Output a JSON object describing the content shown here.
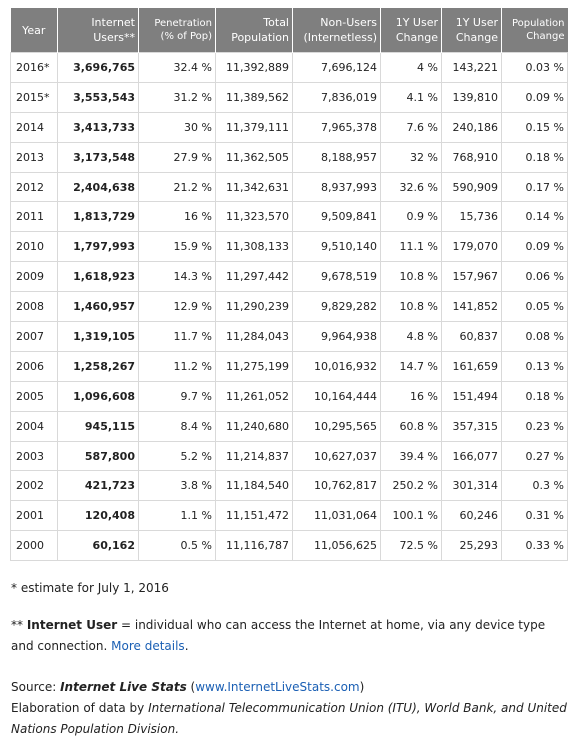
{
  "table": {
    "headers": {
      "year": "Year",
      "users_1": "Internet",
      "users_2": "Users**",
      "pen_1": "Penetration",
      "pen_2": "(% of Pop)",
      "pop_1": "Total",
      "pop_2": "Population",
      "non_1": "Non-Users",
      "non_2": "(Internetless)",
      "chg_1": "1Y User",
      "chg_2": "Change",
      "chgabs_1": "1Y User",
      "chgabs_2": "Change",
      "popchg_1": "Population",
      "popchg_2": "Change"
    },
    "rows": [
      {
        "year": "2016*",
        "users": "3,696,765",
        "penetration": "32.4 %",
        "population": "11,392,889",
        "non_users": "7,696,124",
        "change_pct": "4 %",
        "change_abs": "143,221",
        "pop_change": "0.03 %"
      },
      {
        "year": "2015*",
        "users": "3,553,543",
        "penetration": "31.2 %",
        "population": "11,389,562",
        "non_users": "7,836,019",
        "change_pct": "4.1 %",
        "change_abs": "139,810",
        "pop_change": "0.09 %"
      },
      {
        "year": "2014",
        "users": "3,413,733",
        "penetration": "30 %",
        "population": "11,379,111",
        "non_users": "7,965,378",
        "change_pct": "7.6 %",
        "change_abs": "240,186",
        "pop_change": "0.15 %"
      },
      {
        "year": "2013",
        "users": "3,173,548",
        "penetration": "27.9 %",
        "population": "11,362,505",
        "non_users": "8,188,957",
        "change_pct": "32 %",
        "change_abs": "768,910",
        "pop_change": "0.18 %"
      },
      {
        "year": "2012",
        "users": "2,404,638",
        "penetration": "21.2 %",
        "population": "11,342,631",
        "non_users": "8,937,993",
        "change_pct": "32.6 %",
        "change_abs": "590,909",
        "pop_change": "0.17 %"
      },
      {
        "year": "2011",
        "users": "1,813,729",
        "penetration": "16 %",
        "population": "11,323,570",
        "non_users": "9,509,841",
        "change_pct": "0.9 %",
        "change_abs": "15,736",
        "pop_change": "0.14 %"
      },
      {
        "year": "2010",
        "users": "1,797,993",
        "penetration": "15.9 %",
        "population": "11,308,133",
        "non_users": "9,510,140",
        "change_pct": "11.1 %",
        "change_abs": "179,070",
        "pop_change": "0.09 %"
      },
      {
        "year": "2009",
        "users": "1,618,923",
        "penetration": "14.3 %",
        "population": "11,297,442",
        "non_users": "9,678,519",
        "change_pct": "10.8 %",
        "change_abs": "157,967",
        "pop_change": "0.06 %"
      },
      {
        "year": "2008",
        "users": "1,460,957",
        "penetration": "12.9 %",
        "population": "11,290,239",
        "non_users": "9,829,282",
        "change_pct": "10.8 %",
        "change_abs": "141,852",
        "pop_change": "0.05 %"
      },
      {
        "year": "2007",
        "users": "1,319,105",
        "penetration": "11.7 %",
        "population": "11,284,043",
        "non_users": "9,964,938",
        "change_pct": "4.8 %",
        "change_abs": "60,837",
        "pop_change": "0.08 %"
      },
      {
        "year": "2006",
        "users": "1,258,267",
        "penetration": "11.2 %",
        "population": "11,275,199",
        "non_users": "10,016,932",
        "change_pct": "14.7 %",
        "change_abs": "161,659",
        "pop_change": "0.13 %"
      },
      {
        "year": "2005",
        "users": "1,096,608",
        "penetration": "9.7 %",
        "population": "11,261,052",
        "non_users": "10,164,444",
        "change_pct": "16 %",
        "change_abs": "151,494",
        "pop_change": "0.18 %"
      },
      {
        "year": "2004",
        "users": "945,115",
        "penetration": "8.4 %",
        "population": "11,240,680",
        "non_users": "10,295,565",
        "change_pct": "60.8 %",
        "change_abs": "357,315",
        "pop_change": "0.23 %"
      },
      {
        "year": "2003",
        "users": "587,800",
        "penetration": "5.2 %",
        "population": "11,214,837",
        "non_users": "10,627,037",
        "change_pct": "39.4 %",
        "change_abs": "166,077",
        "pop_change": "0.27 %"
      },
      {
        "year": "2002",
        "users": "421,723",
        "penetration": "3.8 %",
        "population": "11,184,540",
        "non_users": "10,762,817",
        "change_pct": "250.2 %",
        "change_abs": "301,314",
        "pop_change": "0.3 %"
      },
      {
        "year": "2001",
        "users": "120,408",
        "penetration": "1.1 %",
        "population": "11,151,472",
        "non_users": "11,031,064",
        "change_pct": "100.1 %",
        "change_abs": "60,246",
        "pop_change": "0.31 %"
      },
      {
        "year": "2000",
        "users": "60,162",
        "penetration": "0.5 %",
        "population": "11,116,787",
        "non_users": "11,056,625",
        "change_pct": "72.5 %",
        "change_abs": "25,293",
        "pop_change": "0.33 %"
      }
    ]
  },
  "notes": {
    "estimate": "* estimate for July 1, 2016",
    "def_prefix": "** ",
    "def_term": "Internet User",
    "def_text": " = individual who can access the Internet at home, via any device type and connection. ",
    "more_details": "More details",
    "def_end": ".",
    "source_label": "Source: ",
    "source_name": "Internet Live Stats",
    "source_open": " (",
    "source_link": "www.InternetLiveStats.com",
    "source_close": ")",
    "elab_prefix": "Elaboration of data by ",
    "elab_text": "International Telecommunication Union (ITU), World Bank, and United Nations Population Division."
  },
  "colors": {
    "header_bg": "#7f7f7f",
    "link": "#1a5fb4",
    "grid": "#d9d9d9"
  }
}
